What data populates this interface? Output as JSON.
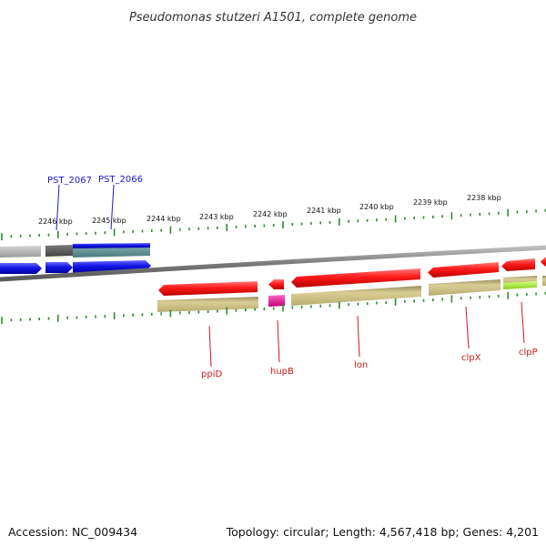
{
  "title": "Pseudomonas stutzeri A1501, complete genome",
  "footer": {
    "accession": "Accession: NC_009434",
    "topology": "Topology: circular; Length: 4,567,418 bp; Genes: 4,201"
  },
  "scale_labels": [
    "2246 kbp",
    "2245 kbp",
    "2244 kbp",
    "2243 kbp",
    "2242 kbp",
    "2241 kbp",
    "2240 kbp",
    "2239 kbp",
    "2238 kbp"
  ],
  "genes_top": [
    {
      "label": "PST_2067",
      "color": "#1a1acc"
    },
    {
      "label": "PST_2066",
      "color": "#1a1acc"
    }
  ],
  "genes_bottom": [
    {
      "label": "ppiD",
      "color": "#cc1a1a"
    },
    {
      "label": "hupB",
      "color": "#cc1a1a"
    },
    {
      "label": "lon",
      "color": "#cc1a1a"
    },
    {
      "label": "clpX",
      "color": "#cc1a1a"
    },
    {
      "label": "clpP",
      "color": "#cc1a1a"
    }
  ],
  "colors": {
    "backbone": "#888888",
    "scale_ticks": "#2e8b2e",
    "forward_cds": "#1414e6",
    "reverse_cds": "#e60f0f",
    "olive_gene": "#c8bd80",
    "highlight_gene": "#e6199a",
    "lime_gene": "#a8e641",
    "grey_gene": "#b4b4b4"
  }
}
